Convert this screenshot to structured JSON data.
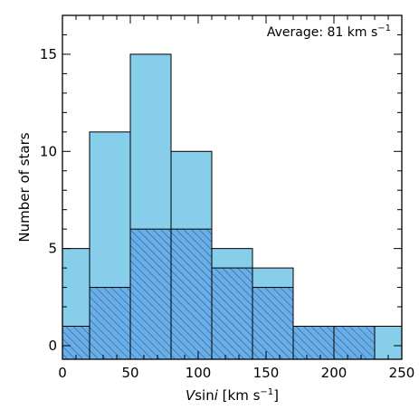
{
  "chart_data": {
    "type": "bar",
    "subtype": "stacked-histogram",
    "bins": [
      {
        "x0": 0,
        "x1": 20,
        "total": 5,
        "hatched": 1
      },
      {
        "x0": 20,
        "x1": 50,
        "total": 11,
        "hatched": 3
      },
      {
        "x0": 50,
        "x1": 80,
        "total": 15,
        "hatched": 6
      },
      {
        "x0": 80,
        "x1": 110,
        "total": 10,
        "hatched": 6
      },
      {
        "x0": 110,
        "x1": 140,
        "total": 5,
        "hatched": 4
      },
      {
        "x0": 140,
        "x1": 170,
        "total": 4,
        "hatched": 3
      },
      {
        "x0": 170,
        "x1": 200,
        "total": 1,
        "hatched": 1
      },
      {
        "x0": 200,
        "x1": 230,
        "total": 1,
        "hatched": 1
      },
      {
        "x0": 230,
        "x1": 250,
        "total": 1,
        "hatched": 0
      }
    ],
    "xlim": [
      0,
      250
    ],
    "ylim": [
      -0.7,
      17
    ],
    "xticks": [
      0,
      50,
      100,
      150,
      200,
      250
    ],
    "xticklabels": [
      "0",
      "50",
      "100",
      "150",
      "200",
      "250"
    ],
    "xminor_step": 10,
    "yticks": [
      0,
      5,
      10,
      15
    ],
    "yticklabels": [
      "0",
      "5",
      "10",
      "15"
    ],
    "yminor_step": 1,
    "xlabel": {
      "v": "V",
      "mid": "sin",
      "i": "i",
      "rest": " [km s",
      "sup": "−1",
      "close": "]"
    },
    "ylabel": "Number of stars",
    "annotation": {
      "text": "Average: 81 km s",
      "sup": "−1"
    },
    "colors": {
      "total_fill": "#87ceeb",
      "hatched_fill": "#6aaee8",
      "hatch_line": "#1f4f85",
      "outline": "#000000"
    },
    "grid": false
  }
}
